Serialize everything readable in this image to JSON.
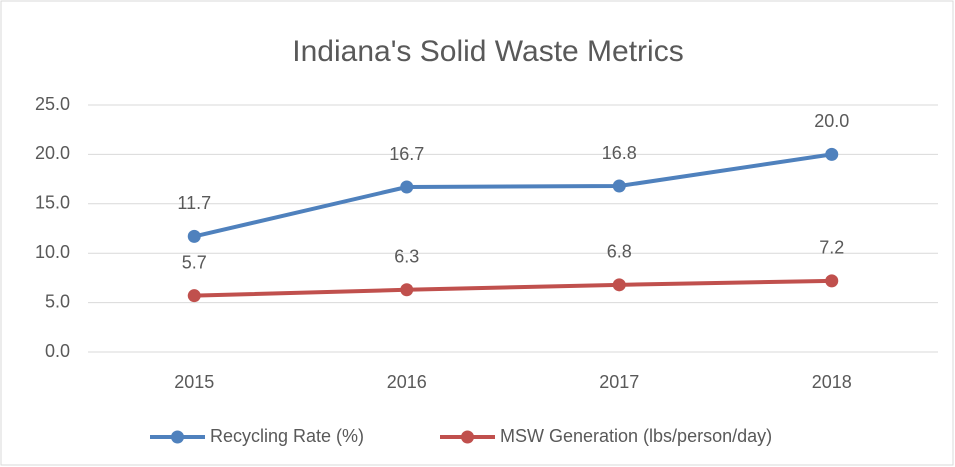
{
  "chart_data": {
    "type": "line",
    "title": "Indiana's Solid Waste Metrics",
    "categories": [
      "2015",
      "2016",
      "2017",
      "2018"
    ],
    "series": [
      {
        "name": "Recycling Rate (%)",
        "color": "#4f81bd",
        "values": [
          11.7,
          16.7,
          16.8,
          20
        ],
        "value_labels": [
          "11.7",
          "16.7",
          "16.8",
          "20.0"
        ]
      },
      {
        "name": "MSW Generation (lbs/person/day)",
        "color": "#c0504d",
        "values": [
          5.7,
          6.3,
          6.8,
          7.2
        ],
        "value_labels": [
          "5.7",
          "6.3",
          "6.8",
          "7.2"
        ]
      }
    ],
    "ylim": [
      0,
      25
    ],
    "yticks": [
      {
        "value": 0,
        "label": "0.0"
      },
      {
        "value": 5,
        "label": "5.0"
      },
      {
        "value": 10,
        "label": "10.0"
      },
      {
        "value": 15,
        "label": "15.0"
      },
      {
        "value": 20,
        "label": "20.0"
      },
      {
        "value": 25,
        "label": "25.0"
      }
    ],
    "grid": true,
    "legend": "bottom"
  }
}
